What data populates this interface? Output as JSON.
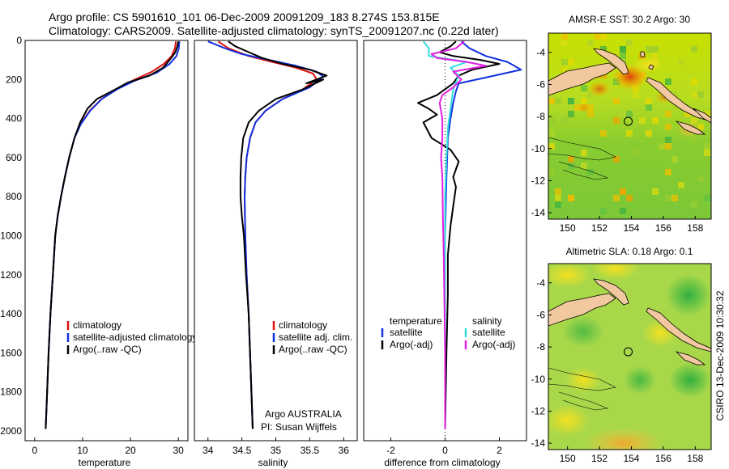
{
  "title_line1": "Argo profile: CS 5901610_101 06-Dec-2009 20091209_183 8.274S 153.815E",
  "title_line2": "Climatology: CARS2009. Satellite-adjusted climatology: synTS_20091207.nc (0.22d later)",
  "credit_side": "CSIRO 13-Dec-2009 10:30:32",
  "float_info": {
    "line1": "Argo AUSTRALIA",
    "line2": "PI: Susan Wijffels"
  },
  "depth_ticks": [
    0,
    200,
    400,
    600,
    800,
    1000,
    1200,
    1400,
    1600,
    1800,
    2000
  ],
  "colors": {
    "climatology": "#e01010",
    "satellite": "#1030e0",
    "argo": "#000000",
    "sat_salinity": "#33dddd",
    "argo_salinity": "#e020e0",
    "land": "#f2c8a0"
  },
  "chart_data": [
    {
      "type": "line",
      "xlabel": "temperature",
      "xlim": [
        -2,
        32
      ],
      "ylim": [
        2050,
        0
      ],
      "xticks": [
        0,
        10,
        20,
        30
      ],
      "legend": [
        "climatology",
        "satellite-adjusted climatology",
        "Argo(..raw -QC)"
      ],
      "series": [
        {
          "name": "climatology",
          "color": "climatology",
          "points": [
            [
              29.5,
              5
            ],
            [
              29.3,
              40
            ],
            [
              28.6,
              80
            ],
            [
              27,
              120
            ],
            [
              24.5,
              160
            ],
            [
              20.5,
              205
            ],
            [
              17,
              250
            ],
            [
              14,
              300
            ],
            [
              11.5,
              360
            ],
            [
              9.5,
              430
            ],
            [
              8.3,
              500
            ],
            [
              7.2,
              600
            ],
            [
              6.3,
              700
            ],
            [
              5.5,
              800
            ],
            [
              4.8,
              900
            ],
            [
              4.3,
              1000
            ],
            [
              3.8,
              1200
            ],
            [
              3.3,
              1400
            ],
            [
              2.9,
              1600
            ],
            [
              2.6,
              1800
            ],
            [
              2.3,
              1990
            ]
          ]
        },
        {
          "name": "satellite-adjusted climatology",
          "color": "satellite",
          "points": [
            [
              30.2,
              5
            ],
            [
              30.1,
              40
            ],
            [
              29.6,
              80
            ],
            [
              28.2,
              120
            ],
            [
              25.5,
              165
            ],
            [
              21,
              205
            ],
            [
              17.2,
              250
            ],
            [
              14,
              300
            ],
            [
              11.6,
              360
            ],
            [
              9.6,
              430
            ],
            [
              8.3,
              500
            ],
            [
              7.2,
              600
            ],
            [
              6.3,
              700
            ],
            [
              5.5,
              800
            ],
            [
              4.8,
              900
            ],
            [
              4.3,
              1000
            ],
            [
              3.8,
              1200
            ],
            [
              3.3,
              1400
            ],
            [
              2.9,
              1600
            ],
            [
              2.6,
              1800
            ],
            [
              2.3,
              1990
            ]
          ]
        },
        {
          "name": "Argo(..raw -QC)",
          "color": "argo",
          "points": [
            [
              30,
              5
            ],
            [
              29.8,
              30
            ],
            [
              29.4,
              60
            ],
            [
              28.2,
              100
            ],
            [
              26.8,
              140
            ],
            [
              24,
              180
            ],
            [
              19.5,
              215
            ],
            [
              16.5,
              255
            ],
            [
              13,
              300
            ],
            [
              11,
              350
            ],
            [
              9.5,
              420
            ],
            [
              8.3,
              500
            ],
            [
              7.2,
              600
            ],
            [
              6.3,
              700
            ],
            [
              5.5,
              800
            ],
            [
              4.8,
              900
            ],
            [
              4.3,
              1000
            ],
            [
              3.8,
              1200
            ],
            [
              3.3,
              1400
            ],
            [
              2.9,
              1600
            ],
            [
              2.6,
              1800
            ],
            [
              2.3,
              1990
            ]
          ]
        }
      ]
    },
    {
      "type": "line",
      "xlabel": "salinity",
      "xlim": [
        33.8,
        36.2
      ],
      "ylim": [
        2050,
        0
      ],
      "xticks": [
        34,
        34.5,
        35,
        35.5,
        36
      ],
      "legend": [
        "climatology",
        "satellite adj. clim.",
        "Argo(..raw -QC)"
      ],
      "series": [
        {
          "name": "climatology",
          "color": "climatology",
          "points": [
            [
              34.15,
              5
            ],
            [
              34.3,
              40
            ],
            [
              34.6,
              80
            ],
            [
              34.95,
              110
            ],
            [
              35.3,
              140
            ],
            [
              35.55,
              170
            ],
            [
              35.6,
              200
            ],
            [
              35.4,
              250
            ],
            [
              35.1,
              300
            ],
            [
              34.85,
              360
            ],
            [
              34.7,
              420
            ],
            [
              34.62,
              500
            ],
            [
              34.57,
              600
            ],
            [
              34.55,
              700
            ],
            [
              34.54,
              800
            ],
            [
              34.55,
              1000
            ],
            [
              34.57,
              1200
            ],
            [
              34.6,
              1400
            ],
            [
              34.62,
              1600
            ],
            [
              34.64,
              1800
            ],
            [
              34.66,
              1990
            ]
          ]
        },
        {
          "name": "satellite adj. clim.",
          "color": "satellite",
          "points": [
            [
              34.0,
              5
            ],
            [
              34.25,
              40
            ],
            [
              34.5,
              70
            ],
            [
              34.9,
              100
            ],
            [
              35.3,
              130
            ],
            [
              35.6,
              160
            ],
            [
              35.7,
              185
            ],
            [
              35.5,
              240
            ],
            [
              35.1,
              300
            ],
            [
              34.85,
              360
            ],
            [
              34.7,
              420
            ],
            [
              34.62,
              500
            ],
            [
              34.57,
              600
            ],
            [
              34.55,
              700
            ],
            [
              34.54,
              800
            ],
            [
              34.55,
              1000
            ],
            [
              34.57,
              1200
            ],
            [
              34.6,
              1400
            ],
            [
              34.62,
              1600
            ],
            [
              34.64,
              1800
            ],
            [
              34.66,
              1990
            ]
          ]
        },
        {
          "name": "Argo(..raw -QC)",
          "color": "argo",
          "points": [
            [
              34.3,
              5
            ],
            [
              34.4,
              30
            ],
            [
              34.6,
              60
            ],
            [
              34.8,
              90
            ],
            [
              35.1,
              120
            ],
            [
              35.5,
              150
            ],
            [
              35.75,
              180
            ],
            [
              35.45,
              220
            ],
            [
              35.7,
              200
            ],
            [
              35.4,
              250
            ],
            [
              35,
              300
            ],
            [
              34.75,
              360
            ],
            [
              34.6,
              420
            ],
            [
              34.52,
              500
            ],
            [
              34.49,
              600
            ],
            [
              34.48,
              700
            ],
            [
              34.48,
              800
            ],
            [
              34.5,
              900
            ],
            [
              34.53,
              1000
            ],
            [
              34.56,
              1200
            ],
            [
              34.6,
              1400
            ],
            [
              34.62,
              1600
            ],
            [
              34.64,
              1800
            ],
            [
              34.66,
              1990
            ]
          ]
        }
      ]
    },
    {
      "type": "line",
      "xlabel": "difference from climatology",
      "xlim": [
        -3,
        3
      ],
      "ylim": [
        2050,
        0
      ],
      "xticks": [
        -2,
        0,
        2
      ],
      "legend": [
        "temperature",
        "satellite",
        "Argo(-adj)",
        "salinity",
        "satellite",
        "Argo(-adj)"
      ],
      "series": [
        {
          "name": "temperature satellite",
          "color": "satellite",
          "points": [
            [
              0.6,
              5
            ],
            [
              0.9,
              40
            ],
            [
              1.5,
              80
            ],
            [
              2.3,
              110
            ],
            [
              2.8,
              150
            ],
            [
              1.5,
              190
            ],
            [
              0.5,
              220
            ],
            [
              0.4,
              260
            ],
            [
              0.3,
              320
            ],
            [
              0.2,
              400
            ],
            [
              0.1,
              500
            ],
            [
              0.05,
              700
            ],
            [
              0,
              1000
            ],
            [
              0,
              1500
            ],
            [
              0,
              1990
            ]
          ]
        },
        {
          "name": "temperature Argo(-adj)",
          "color": "argo",
          "points": [
            [
              0.4,
              5
            ],
            [
              0.2,
              30
            ],
            [
              -0.2,
              60
            ],
            [
              0.3,
              80
            ],
            [
              1.3,
              100
            ],
            [
              2.0,
              120
            ],
            [
              1.0,
              150
            ],
            [
              0.5,
              180
            ],
            [
              0.3,
              220
            ],
            [
              -0.3,
              280
            ],
            [
              -1.0,
              320
            ],
            [
              -0.6,
              350
            ],
            [
              -0.3,
              380
            ],
            [
              -0.8,
              420
            ],
            [
              -0.5,
              500
            ],
            [
              0.2,
              560
            ],
            [
              0.5,
              620
            ],
            [
              0.3,
              700
            ],
            [
              0.4,
              750
            ],
            [
              0.3,
              850
            ],
            [
              0.2,
              950
            ],
            [
              0.1,
              1100
            ],
            [
              0.1,
              1300
            ],
            [
              0.05,
              1600
            ],
            [
              0,
              1990
            ]
          ]
        },
        {
          "name": "salinity satellite",
          "color": "sat_salinity",
          "points": [
            [
              -0.8,
              5
            ],
            [
              -0.6,
              40
            ],
            [
              -0.6,
              80
            ],
            [
              0.8,
              110
            ],
            [
              0.2,
              140
            ],
            [
              0.5,
              180
            ],
            [
              0.3,
              250
            ],
            [
              0.2,
              350
            ],
            [
              0.1,
              450
            ],
            [
              0.05,
              600
            ],
            [
              0,
              800
            ],
            [
              0,
              1200
            ],
            [
              0,
              1600
            ],
            [
              0,
              1990
            ]
          ]
        },
        {
          "name": "salinity Argo(-adj)",
          "color": "argo_salinity",
          "points": [
            [
              0.7,
              5
            ],
            [
              0.4,
              40
            ],
            [
              -0.5,
              70
            ],
            [
              -0.3,
              90
            ],
            [
              0.8,
              110
            ],
            [
              1.5,
              130
            ],
            [
              0.3,
              160
            ],
            [
              0.6,
              200
            ],
            [
              0.3,
              240
            ],
            [
              -0.1,
              280
            ],
            [
              -0.2,
              320
            ],
            [
              -0.1,
              400
            ],
            [
              -0.1,
              500
            ],
            [
              -0.15,
              600
            ],
            [
              -0.1,
              700
            ],
            [
              -0.08,
              900
            ],
            [
              -0.05,
              1100
            ],
            [
              -0.03,
              1300
            ],
            [
              0,
              1600
            ],
            [
              0,
              1990
            ]
          ]
        }
      ]
    }
  ],
  "maps": [
    {
      "title": "AMSR-E SST: 30.2 Argo: 30",
      "xticks": [
        150,
        152,
        154,
        156,
        158
      ],
      "yticks": [
        -4,
        -6,
        -8,
        -10,
        -12,
        -14
      ],
      "xlim": [
        148.8,
        159
      ],
      "ylim": [
        -14.4,
        -2.8
      ],
      "float_lon": 153.8,
      "float_lat": -8.3
    },
    {
      "title": "Altimetric SLA: 0.18 Argo: 0.1",
      "xticks": [
        150,
        152,
        154,
        156,
        158
      ],
      "yticks": [
        -4,
        -6,
        -8,
        -10,
        -12,
        -14
      ],
      "xlim": [
        148.8,
        159
      ],
      "ylim": [
        -14.4,
        -2.8
      ],
      "float_lon": 153.8,
      "float_lat": -8.3
    }
  ]
}
